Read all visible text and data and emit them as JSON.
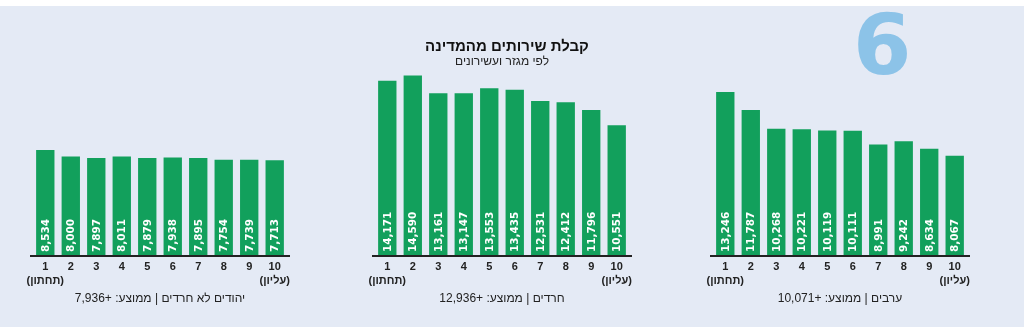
{
  "chart_data": [
    {
      "type": "bar",
      "categories": [
        "1\n(תחתון)",
        "2",
        "3",
        "4",
        "5",
        "6",
        "7",
        "8",
        "9",
        "10\n(עליון)"
      ],
      "values": [
        8534,
        8000,
        7897,
        8011,
        7879,
        7938,
        7895,
        7754,
        7739,
        7713
      ],
      "value_labels": [
        "8,534",
        "8,000",
        "7,897",
        "8,011",
        "7,879",
        "7,938",
        "7,895",
        "7,754",
        "7,739",
        "7,713"
      ],
      "color": "#12a05c",
      "xlabel": "יהודים לא חרדים | ממוצע: +7,936"
    },
    {
      "type": "bar",
      "title": "קבלת שירותים מהמדינה",
      "subtitle": "לפי מגזר ועשירונים",
      "categories": [
        "1\n(תחתון)",
        "2",
        "3",
        "4",
        "5",
        "6",
        "7",
        "8",
        "9",
        "10\n(עליון)"
      ],
      "values": [
        14171,
        14590,
        13161,
        13147,
        13553,
        13435,
        12531,
        12412,
        11796,
        10551
      ],
      "value_labels": [
        "14,171",
        "14,590",
        "13,161",
        "13,147",
        "13,553",
        "13,435",
        "12,531",
        "12,412",
        "11,796",
        "10,551"
      ],
      "color": "#12a05c",
      "xlabel": "חרדים | ממוצע: +12,936"
    },
    {
      "type": "bar",
      "categories": [
        "1\n(תחתון)",
        "2",
        "3",
        "4",
        "5",
        "6",
        "7",
        "8",
        "9",
        "10\n(עליון)"
      ],
      "values": [
        13246,
        11787,
        10268,
        10221,
        10119,
        10111,
        8991,
        9242,
        8634,
        8067
      ],
      "value_labels": [
        "13,246",
        "11,787",
        "10,268",
        "10,221",
        "10,119",
        "10,111",
        "8,991",
        "9,242",
        "8,634",
        "8,067"
      ],
      "color": "#12a05c",
      "xlabel": "ערבים | ממוצע: +10,071",
      "annotations": [
        "6"
      ]
    }
  ]
}
